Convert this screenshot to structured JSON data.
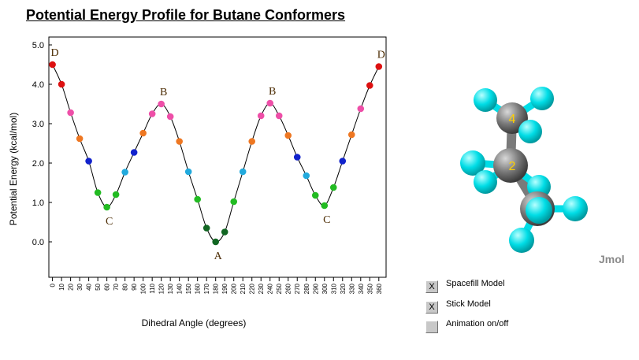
{
  "title": "Potential Energy Profile for Butane Conformers",
  "chart_data": {
    "type": "scatter",
    "title": "Potential Energy Profile for Butane Conformers",
    "xlabel": "Dihedral Angle (degrees)",
    "ylabel": "Potential Energy    (kcal/mol)",
    "xlim": [
      -4,
      368
    ],
    "ylim": [
      -0.9,
      5.2
    ],
    "xticks": [
      0,
      10,
      20,
      30,
      40,
      50,
      60,
      70,
      80,
      90,
      100,
      110,
      120,
      130,
      140,
      150,
      160,
      170,
      180,
      190,
      200,
      210,
      220,
      230,
      240,
      250,
      260,
      270,
      280,
      290,
      300,
      310,
      320,
      330,
      340,
      350,
      360
    ],
    "yticks": [
      "0.0",
      "1.0",
      "2.0",
      "3.0",
      "4.0",
      "5.0"
    ],
    "grid": false,
    "points": [
      {
        "x": 0,
        "y": 4.5,
        "color": "#dd1111"
      },
      {
        "x": 10,
        "y": 4.0,
        "color": "#dd1111"
      },
      {
        "x": 20,
        "y": 3.28,
        "color": "#ee4fa8"
      },
      {
        "x": 30,
        "y": 2.62,
        "color": "#ee7722"
      },
      {
        "x": 40,
        "y": 2.05,
        "color": "#1122cc"
      },
      {
        "x": 50,
        "y": 1.25,
        "color": "#22bb22"
      },
      {
        "x": 60,
        "y": 0.88,
        "color": "#22bb22"
      },
      {
        "x": 70,
        "y": 1.2,
        "color": "#22bb22"
      },
      {
        "x": 80,
        "y": 1.77,
        "color": "#22aadd"
      },
      {
        "x": 90,
        "y": 2.27,
        "color": "#1122cc"
      },
      {
        "x": 100,
        "y": 2.76,
        "color": "#ee7722"
      },
      {
        "x": 110,
        "y": 3.25,
        "color": "#ee4fa8"
      },
      {
        "x": 120,
        "y": 3.5,
        "color": "#ee4fa8"
      },
      {
        "x": 130,
        "y": 3.18,
        "color": "#ee4fa8"
      },
      {
        "x": 140,
        "y": 2.55,
        "color": "#ee7722"
      },
      {
        "x": 150,
        "y": 1.78,
        "color": "#22aadd"
      },
      {
        "x": 160,
        "y": 1.08,
        "color": "#22bb22"
      },
      {
        "x": 170,
        "y": 0.35,
        "color": "#116622"
      },
      {
        "x": 180,
        "y": 0.0,
        "color": "#116622"
      },
      {
        "x": 190,
        "y": 0.25,
        "color": "#116622"
      },
      {
        "x": 200,
        "y": 1.02,
        "color": "#22bb22"
      },
      {
        "x": 210,
        "y": 1.78,
        "color": "#22aadd"
      },
      {
        "x": 220,
        "y": 2.55,
        "color": "#ee7722"
      },
      {
        "x": 230,
        "y": 3.2,
        "color": "#ee4fa8"
      },
      {
        "x": 240,
        "y": 3.52,
        "color": "#ee4fa8"
      },
      {
        "x": 250,
        "y": 3.2,
        "color": "#ee4fa8"
      },
      {
        "x": 260,
        "y": 2.7,
        "color": "#ee7722"
      },
      {
        "x": 270,
        "y": 2.15,
        "color": "#1122cc"
      },
      {
        "x": 280,
        "y": 1.68,
        "color": "#22aadd"
      },
      {
        "x": 290,
        "y": 1.18,
        "color": "#22bb22"
      },
      {
        "x": 300,
        "y": 0.92,
        "color": "#22bb22"
      },
      {
        "x": 310,
        "y": 1.38,
        "color": "#22bb22"
      },
      {
        "x": 320,
        "y": 2.05,
        "color": "#1122cc"
      },
      {
        "x": 330,
        "y": 2.72,
        "color": "#ee7722"
      },
      {
        "x": 340,
        "y": 3.38,
        "color": "#ee4fa8"
      },
      {
        "x": 350,
        "y": 3.97,
        "color": "#dd1111"
      },
      {
        "x": 360,
        "y": 4.45,
        "color": "#dd1111"
      }
    ],
    "annotations": [
      {
        "text": "D",
        "x": 0,
        "y": 4.5,
        "pos": "above"
      },
      {
        "text": "B",
        "x": 120,
        "y": 3.5,
        "pos": "above"
      },
      {
        "text": "C",
        "x": 60,
        "y": 0.88,
        "pos": "below"
      },
      {
        "text": "A",
        "x": 180,
        "y": 0.0,
        "pos": "below"
      },
      {
        "text": "B",
        "x": 240,
        "y": 3.52,
        "pos": "above"
      },
      {
        "text": "C",
        "x": 300,
        "y": 0.92,
        "pos": "below"
      },
      {
        "text": "D",
        "x": 360,
        "y": 4.45,
        "pos": "above"
      }
    ]
  },
  "viewer": {
    "label": "Jmol",
    "atom_labels": [
      "4",
      "2"
    ],
    "carbon_color": "#7a7a7a",
    "hydrogen_color": "#00e0e8"
  },
  "controls": [
    {
      "label": "Spacefill Model",
      "checked": true,
      "mark": "X"
    },
    {
      "label": "Stick Model",
      "checked": true,
      "mark": "X"
    },
    {
      "label": "Animation on/off",
      "checked": false,
      "mark": ""
    }
  ]
}
